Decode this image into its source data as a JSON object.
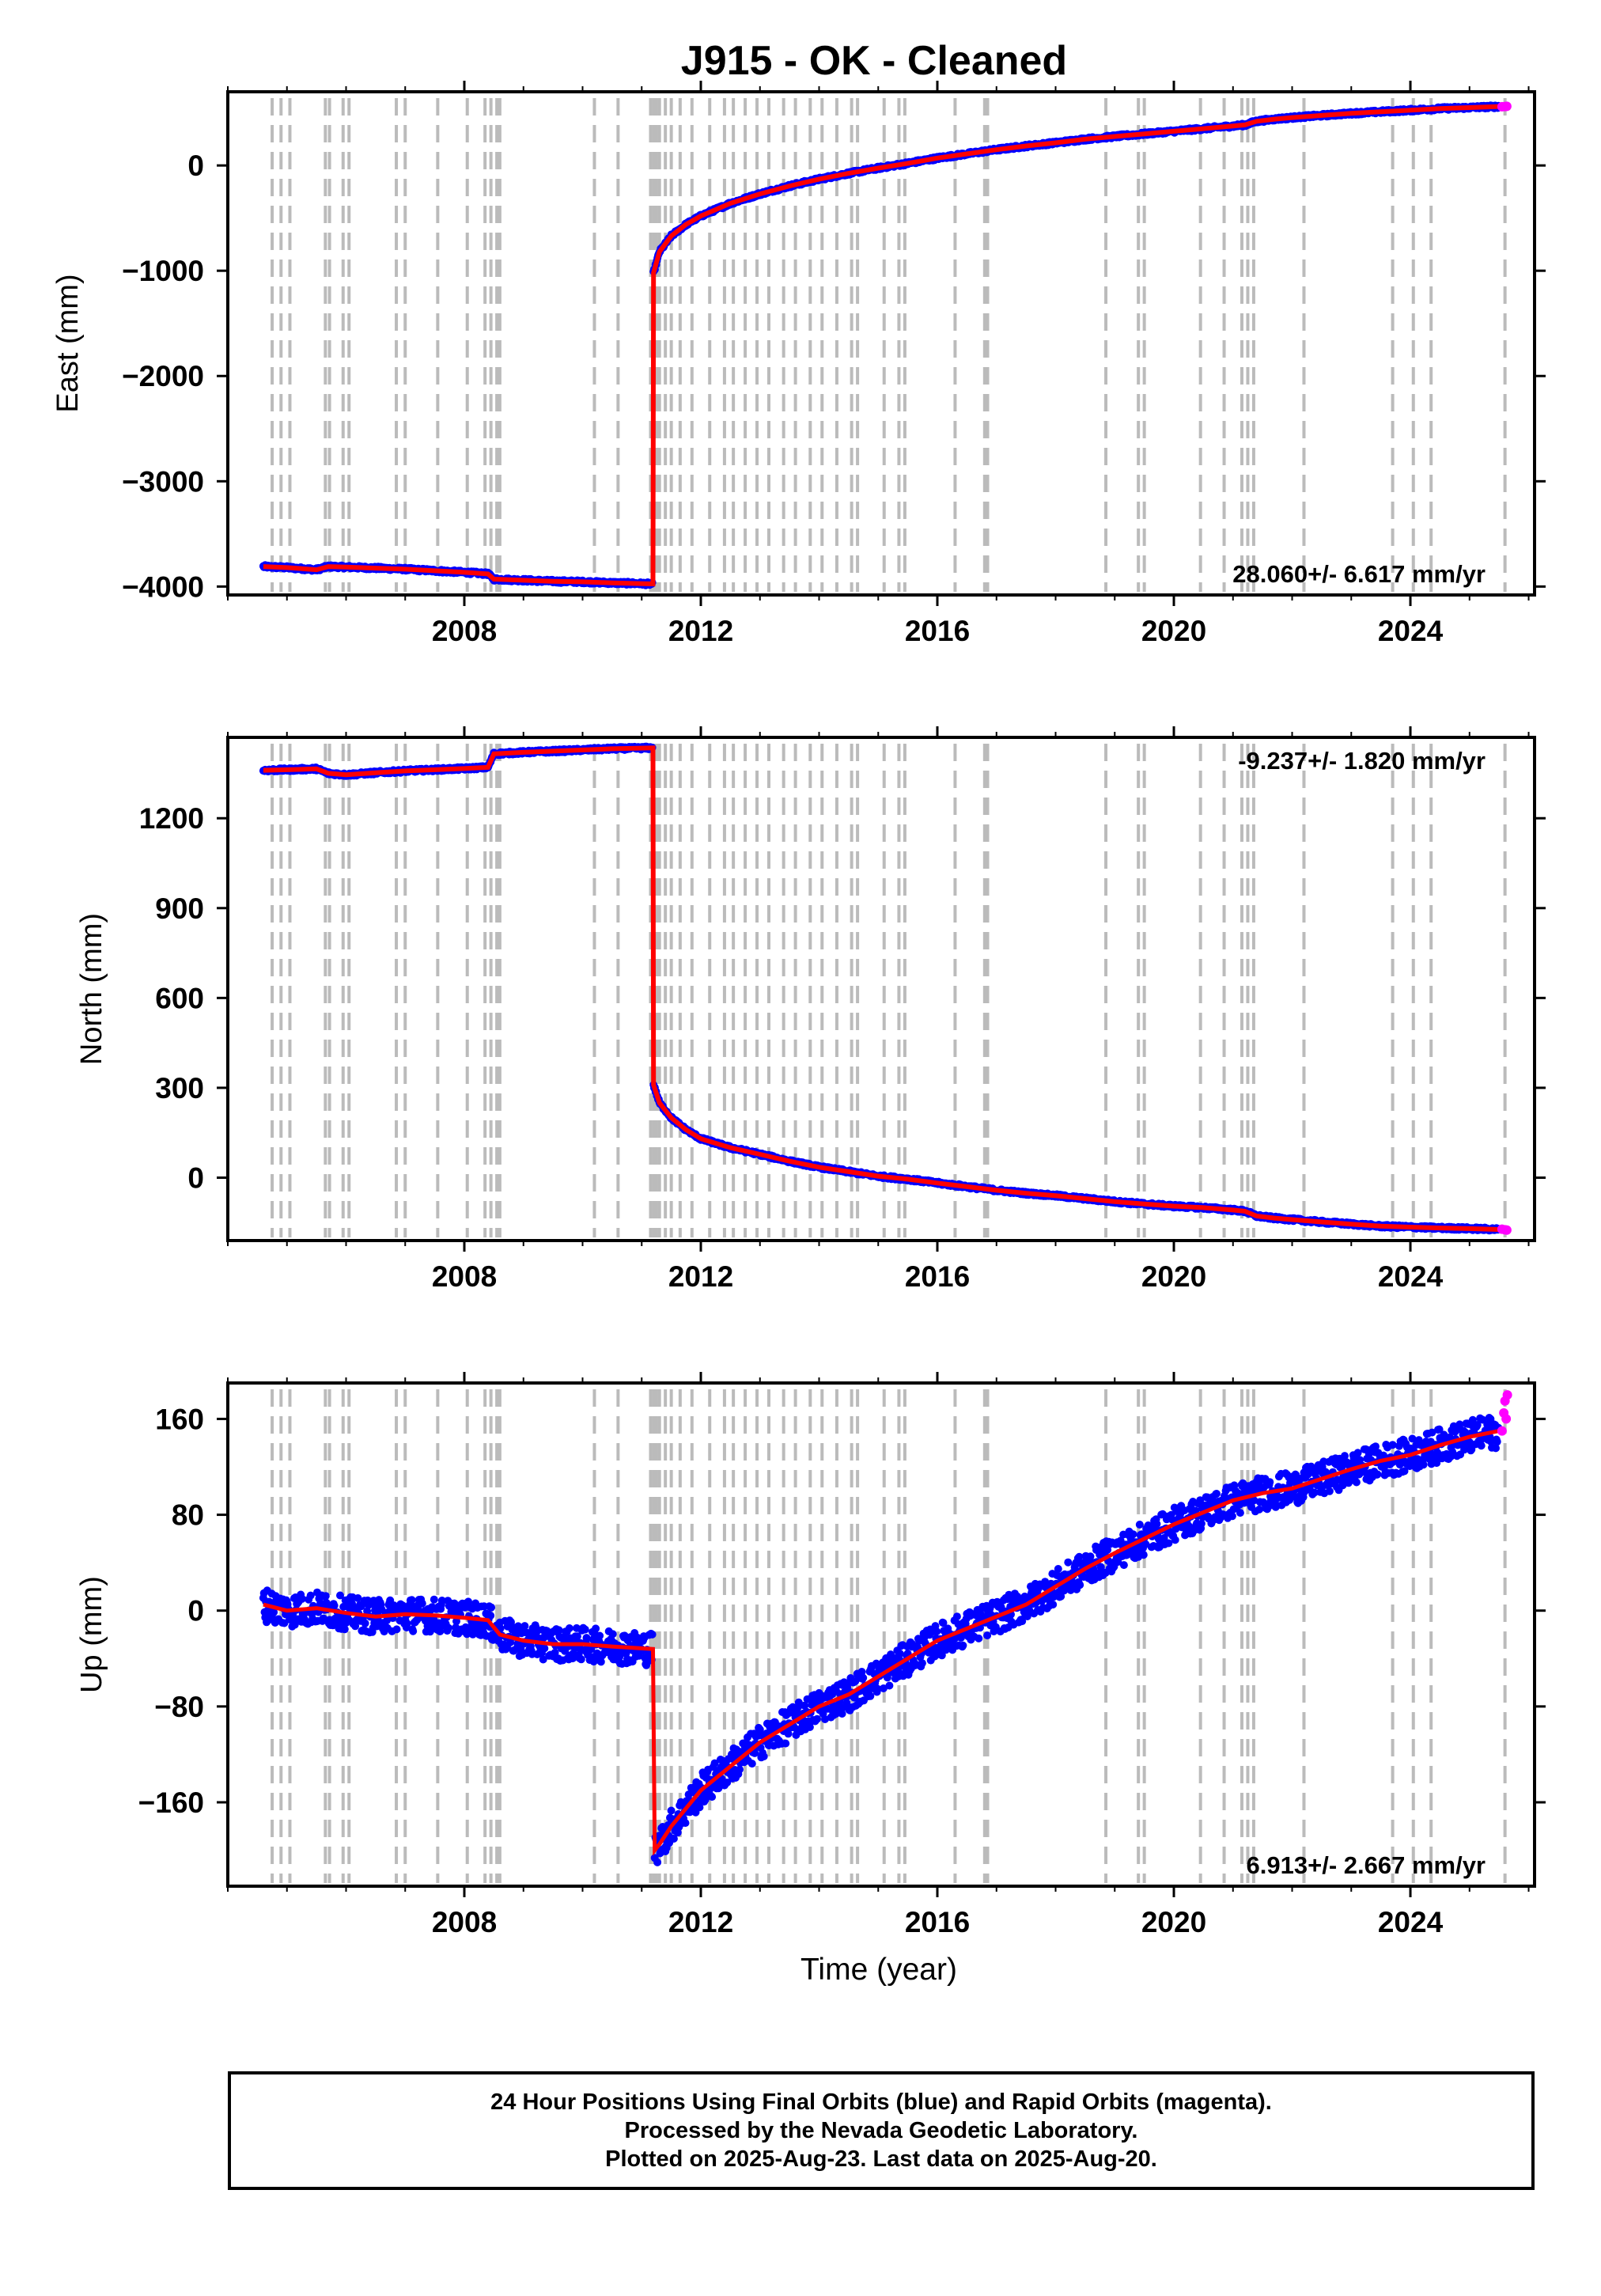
{
  "figure": {
    "title": "J915  - OK - Cleaned",
    "xlabel": "Time (year)"
  },
  "footer": {
    "lines": [
      "24 Hour Positions Using Final Orbits (blue) and Rapid Orbits (magenta).",
      "Processed by the Nevada Geodetic Laboratory.",
      "Plotted on 2025-Aug-23. Last data on 2025-Aug-20."
    ]
  },
  "colors": {
    "final_orbits": "#0000ff",
    "rapid_orbits": "#ff00ff",
    "model_fit": "#ff0000",
    "event_lines": "#bbbbbb",
    "frame": "#000000"
  },
  "chart_data": [
    {
      "type": "scatter",
      "panel": "east",
      "ylabel": "East (mm)",
      "xlim": [
        2004.0,
        2026.1
      ],
      "ylim": [
        -4080,
        700
      ],
      "xticks": [
        2008,
        2012,
        2016,
        2020,
        2024
      ],
      "yticks": [
        0,
        -1000,
        -2000,
        -3000,
        -4000
      ],
      "ytick_labels": [
        "0",
        "−1000",
        "−2000",
        "−3000",
        "−4000"
      ],
      "annotation": "28.060+/- 6.617 mm/yr",
      "annotation_position": "bottom-right",
      "grid": false,
      "series": [
        {
          "name": "Final Orbits",
          "color": "#0000ff",
          "x": [
            2004.6,
            2005.0,
            2005.5,
            2005.7,
            2006.0,
            2006.5,
            2007.0,
            2007.5,
            2008.0,
            2008.4,
            2008.5,
            2009.0,
            2009.5,
            2010.0,
            2010.5,
            2011.19,
            2011.2,
            2011.3,
            2011.5,
            2011.75,
            2012.0,
            2012.5,
            2013.0,
            2013.5,
            2014.0,
            2014.5,
            2015.0,
            2015.5,
            2016.0,
            2016.5,
            2017.0,
            2017.5,
            2018.0,
            2018.5,
            2019.0,
            2019.5,
            2020.0,
            2020.5,
            2021.0,
            2021.2,
            2021.4,
            2021.7,
            2022.0,
            2022.5,
            2023.0,
            2023.5,
            2024.0,
            2024.5,
            2025.0,
            2025.5
          ],
          "y": [
            -3810,
            -3820,
            -3840,
            -3810,
            -3815,
            -3825,
            -3835,
            -3850,
            -3865,
            -3880,
            -3930,
            -3940,
            -3950,
            -3955,
            -3965,
            -3975,
            -1020,
            -820,
            -670,
            -560,
            -480,
            -360,
            -270,
            -195,
            -130,
            -75,
            -25,
            20,
            70,
            110,
            150,
            185,
            215,
            250,
            275,
            300,
            325,
            350,
            375,
            385,
            420,
            440,
            455,
            475,
            495,
            510,
            525,
            540,
            550,
            560
          ]
        },
        {
          "name": "Rapid Orbits",
          "color": "#ff00ff",
          "x": [
            2025.55,
            2025.6,
            2025.63
          ],
          "y": [
            558,
            560,
            562
          ]
        }
      ]
    },
    {
      "type": "scatter",
      "panel": "north",
      "ylabel": "North (mm)",
      "xlim": [
        2004.0,
        2026.1
      ],
      "ylim": [
        -210,
        1470
      ],
      "xticks": [
        2008,
        2012,
        2016,
        2020,
        2024
      ],
      "yticks": [
        1200,
        900,
        600,
        300,
        0
      ],
      "ytick_labels": [
        "1200",
        "900",
        "600",
        "300",
        "0"
      ],
      "annotation": "-9.237+/- 1.820 mm/yr",
      "annotation_position": "top-right",
      "grid": false,
      "series": [
        {
          "name": "Final Orbits",
          "color": "#0000ff",
          "x": [
            2004.6,
            2005.0,
            2005.5,
            2005.7,
            2006.0,
            2006.5,
            2007.0,
            2007.5,
            2008.0,
            2008.4,
            2008.5,
            2009.0,
            2009.5,
            2010.0,
            2010.5,
            2011.19,
            2011.2,
            2011.3,
            2011.5,
            2011.75,
            2012.0,
            2012.5,
            2013.0,
            2013.5,
            2014.0,
            2014.5,
            2015.0,
            2015.5,
            2016.0,
            2016.5,
            2017.0,
            2017.5,
            2018.0,
            2018.5,
            2019.0,
            2019.5,
            2020.0,
            2020.5,
            2021.0,
            2021.2,
            2021.4,
            2021.7,
            2022.0,
            2022.5,
            2023.0,
            2023.5,
            2024.0,
            2024.5,
            2025.0,
            2025.5
          ],
          "y": [
            1360,
            1362,
            1365,
            1350,
            1345,
            1352,
            1358,
            1362,
            1366,
            1370,
            1415,
            1420,
            1424,
            1428,
            1432,
            1435,
            310,
            250,
            200,
            160,
            130,
            100,
            78,
            55,
            35,
            20,
            5,
            -5,
            -18,
            -30,
            -42,
            -52,
            -60,
            -70,
            -80,
            -88,
            -95,
            -100,
            -108,
            -112,
            -128,
            -135,
            -140,
            -148,
            -155,
            -162,
            -165,
            -168,
            -170,
            -173
          ]
        },
        {
          "name": "Rapid Orbits",
          "color": "#ff00ff",
          "x": [
            2025.55,
            2025.6,
            2025.63
          ],
          "y": [
            -172,
            -174,
            -175
          ]
        }
      ]
    },
    {
      "type": "scatter",
      "panel": "up",
      "ylabel": "Up (mm)",
      "xlim": [
        2004.0,
        2026.1
      ],
      "ylim": [
        -230,
        190
      ],
      "xticks": [
        2008,
        2012,
        2016,
        2020,
        2024
      ],
      "yticks": [
        160,
        80,
        0,
        -80,
        -160
      ],
      "ytick_labels": [
        "160",
        "80",
        "0",
        "−80",
        "−160"
      ],
      "annotation": "6.913+/- 2.667 mm/yr",
      "annotation_position": "bottom-right",
      "grid": false,
      "series": [
        {
          "name": "Final Orbits",
          "color": "#0000ff",
          "x": [
            2004.6,
            2005.0,
            2005.5,
            2006.0,
            2006.5,
            2007.0,
            2007.5,
            2008.0,
            2008.4,
            2008.6,
            2009.0,
            2009.5,
            2010.0,
            2010.5,
            2011.19,
            2011.22,
            2011.3,
            2011.5,
            2011.75,
            2012.0,
            2012.5,
            2013.0,
            2013.5,
            2014.0,
            2014.5,
            2015.0,
            2015.5,
            2016.0,
            2016.5,
            2017.0,
            2017.5,
            2018.0,
            2018.5,
            2019.0,
            2019.5,
            2020.0,
            2020.5,
            2021.0,
            2021.5,
            2022.0,
            2022.5,
            2023.0,
            2023.5,
            2024.0,
            2024.5,
            2025.0,
            2025.5
          ],
          "y": [
            5,
            0,
            2,
            -2,
            -5,
            -3,
            -4,
            -6,
            -8,
            -20,
            -25,
            -28,
            -28,
            -30,
            -32,
            -200,
            -195,
            -180,
            -165,
            -150,
            -130,
            -110,
            -95,
            -80,
            -70,
            -55,
            -40,
            -25,
            -15,
            -5,
            5,
            20,
            35,
            48,
            60,
            72,
            82,
            92,
            98,
            102,
            110,
            118,
            125,
            130,
            138,
            145,
            150
          ]
        },
        {
          "name": "Rapid Orbits",
          "color": "#ff00ff",
          "x": [
            2025.55,
            2025.58,
            2025.6,
            2025.62,
            2025.64
          ],
          "y": [
            150,
            165,
            175,
            160,
            180
          ]
        }
      ]
    }
  ],
  "event_lines_years": [
    2004.75,
    2004.9,
    2005.05,
    2005.65,
    2005.72,
    2005.95,
    2006.05,
    2006.85,
    2007.0,
    2007.55,
    2008.05,
    2008.35,
    2008.45,
    2008.55,
    2008.6,
    2010.2,
    2010.6,
    2011.15,
    2011.2,
    2011.25,
    2011.3,
    2011.4,
    2011.5,
    2011.65,
    2011.85,
    2012.15,
    2012.4,
    2012.55,
    2012.75,
    2012.95,
    2013.15,
    2013.4,
    2013.6,
    2013.85,
    2014.05,
    2014.3,
    2014.55,
    2014.65,
    2015.1,
    2015.35,
    2015.45,
    2016.3,
    2016.8,
    2016.85,
    2018.85,
    2019.4,
    2019.5,
    2020.45,
    2020.85,
    2021.15,
    2021.25,
    2021.35,
    2022.2,
    2023.7,
    2024.05,
    2024.35,
    2025.6
  ]
}
